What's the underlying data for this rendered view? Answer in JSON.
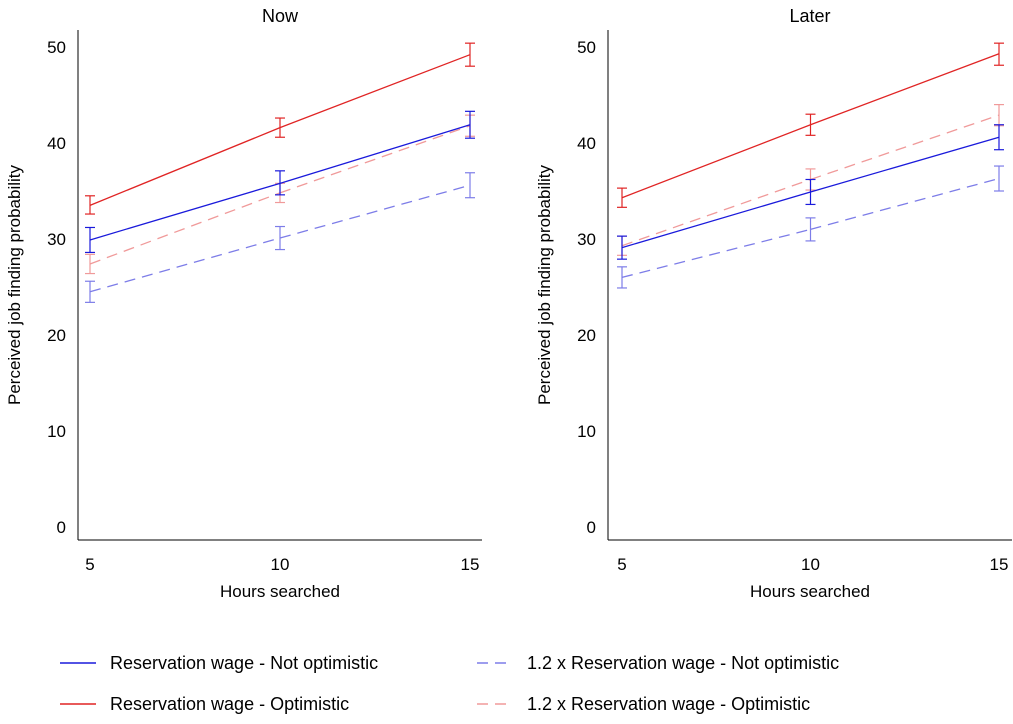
{
  "chart_data": [
    {
      "type": "line",
      "title": "Now",
      "xlabel": "Hours searched",
      "ylabel": "Perceived job finding probability",
      "x": [
        5,
        10,
        15
      ],
      "xlim": [
        5,
        15
      ],
      "ylim": [
        0,
        50
      ],
      "xticks": [
        "5",
        "10",
        "15"
      ],
      "yticks": [
        "0",
        "10",
        "20",
        "30",
        "40",
        "50"
      ],
      "grid": false,
      "series": [
        {
          "name": "Reservation wage - Not optimistic",
          "color": "#1a1adb",
          "dash": "solid",
          "values": [
            29.9,
            35.8,
            41.9
          ],
          "ci_low": [
            28.6,
            34.6,
            40.5
          ],
          "ci_high": [
            31.2,
            37.1,
            43.3
          ]
        },
        {
          "name": "Reservation wage - Optimistic",
          "color": "#e02424",
          "dash": "solid",
          "values": [
            33.5,
            41.6,
            49.2
          ],
          "ci_low": [
            32.6,
            40.6,
            48.0
          ],
          "ci_high": [
            34.5,
            42.6,
            50.4
          ]
        },
        {
          "name": "1.2 x Reservation wage - Not optimistic",
          "color": "#7d7de8",
          "dash": "dashed",
          "values": [
            24.5,
            30.1,
            35.6
          ],
          "ci_low": [
            23.4,
            28.9,
            34.3
          ],
          "ci_high": [
            25.6,
            31.3,
            36.9
          ]
        },
        {
          "name": "1.2 x Reservation wage - Optimistic",
          "color": "#f09a9a",
          "dash": "dashed",
          "values": [
            27.4,
            34.8,
            41.8
          ],
          "ci_low": [
            26.4,
            33.8,
            40.7
          ],
          "ci_high": [
            28.4,
            35.8,
            42.9
          ]
        }
      ]
    },
    {
      "type": "line",
      "title": "Later",
      "xlabel": "Hours searched",
      "ylabel": "Perceived job finding probability",
      "x": [
        5,
        10,
        15
      ],
      "xlim": [
        5,
        15
      ],
      "ylim": [
        0,
        50
      ],
      "xticks": [
        "5",
        "10",
        "15"
      ],
      "yticks": [
        "0",
        "10",
        "20",
        "30",
        "40",
        "50"
      ],
      "grid": false,
      "series": [
        {
          "name": "Reservation wage - Not optimistic",
          "color": "#1a1adb",
          "dash": "solid",
          "values": [
            29.1,
            34.9,
            40.6
          ],
          "ci_low": [
            27.9,
            33.6,
            39.3
          ],
          "ci_high": [
            30.3,
            36.2,
            41.9
          ]
        },
        {
          "name": "Reservation wage - Optimistic",
          "color": "#e02424",
          "dash": "solid",
          "values": [
            34.3,
            41.9,
            49.3
          ],
          "ci_low": [
            33.3,
            40.8,
            48.1
          ],
          "ci_high": [
            35.3,
            43.0,
            50.4
          ]
        },
        {
          "name": "1.2 x Reservation wage - Not optimistic",
          "color": "#7d7de8",
          "dash": "dashed",
          "values": [
            26.0,
            31.0,
            36.3
          ],
          "ci_low": [
            24.9,
            29.8,
            35.0
          ],
          "ci_high": [
            27.1,
            32.2,
            37.6
          ]
        },
        {
          "name": "1.2 x Reservation wage - Optimistic",
          "color": "#f09a9a",
          "dash": "dashed",
          "values": [
            29.3,
            36.2,
            42.9
          ],
          "ci_low": [
            28.3,
            35.1,
            41.8
          ],
          "ci_high": [
            30.3,
            37.3,
            44.0
          ]
        }
      ]
    }
  ],
  "legend": {
    "placement": "bottom",
    "items": [
      {
        "label": "Reservation wage - Not optimistic",
        "color": "#1a1adb",
        "dash": "solid"
      },
      {
        "label": "1.2 x Reservation wage - Not optimistic",
        "color": "#7d7de8",
        "dash": "dashed"
      },
      {
        "label": "Reservation wage - Optimistic",
        "color": "#e02424",
        "dash": "solid"
      },
      {
        "label": "1.2 x Reservation wage - Optimistic",
        "color": "#f09a9a",
        "dash": "dashed"
      }
    ]
  }
}
